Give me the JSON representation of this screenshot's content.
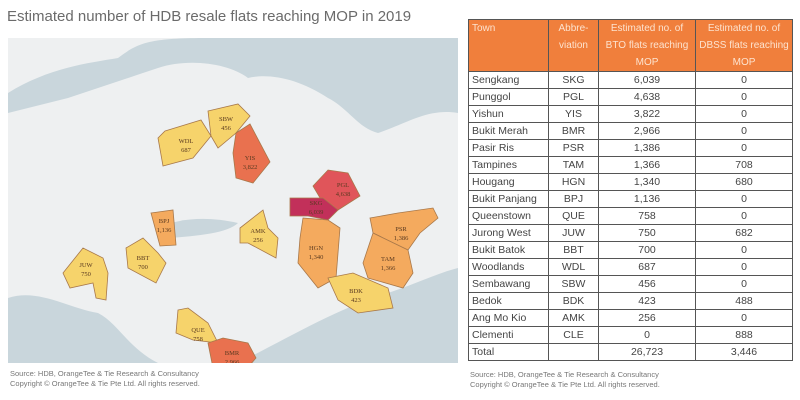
{
  "title": "Estimated number of HDB resale flats reaching MOP in 2019",
  "source_left": "Source: HDB, OrangeTee & Tie Research & Consultancy",
  "copyright_left": "Copyright © OrangeTee & Tie Pte Ltd. All rights reserved.",
  "source_right": "Source: HDB, OrangeTee & Tie Research & Consultancy",
  "copyright_right": "Copyright © OrangeTee & Tie Pte Ltd. All rights reserved.",
  "colors": {
    "header": "#f07f3c",
    "low": "#f6d36b",
    "mid": "#f4aa5e",
    "high": "#e9714f",
    "higher": "#e0555a",
    "highest": "#c2305a",
    "land": "#eef0f1",
    "water": "#c9d6dc"
  },
  "chart_data": {
    "type": "table",
    "title": "Estimated number of HDB resale flats reaching MOP in 2019",
    "columns": [
      "Town",
      "Abbre-viation",
      "Estimated no. of BTO flats reaching MOP",
      "Estimated no. of DBSS flats reaching MOP"
    ],
    "rows": [
      [
        "Sengkang",
        "SKG",
        "6,039",
        "0"
      ],
      [
        "Punggol",
        "PGL",
        "4,638",
        "0"
      ],
      [
        "Yishun",
        "YIS",
        "3,822",
        "0"
      ],
      [
        "Bukit Merah",
        "BMR",
        "2,966",
        "0"
      ],
      [
        "Pasir Ris",
        "PSR",
        "1,386",
        "0"
      ],
      [
        "Tampines",
        "TAM",
        "1,366",
        "708"
      ],
      [
        "Hougang",
        "HGN",
        "1,340",
        "680"
      ],
      [
        "Bukit Panjang",
        "BPJ",
        "1,136",
        "0"
      ],
      [
        "Queenstown",
        "QUE",
        "758",
        "0"
      ],
      [
        "Jurong West",
        "JUW",
        "750",
        "682"
      ],
      [
        "Bukit Batok",
        "BBT",
        "700",
        "0"
      ],
      [
        "Woodlands",
        "WDL",
        "687",
        "0"
      ],
      [
        "Sembawang",
        "SBW",
        "456",
        "0"
      ],
      [
        "Bedok",
        "BDK",
        "423",
        "488"
      ],
      [
        "Ang Mo Kio",
        "AMK",
        "256",
        "0"
      ],
      [
        "Clementi",
        "CLE",
        "0",
        "888"
      ]
    ],
    "total": [
      "Total",
      "",
      "26,723",
      "3,446"
    ],
    "map_labels": [
      {
        "abbr": "WDL",
        "value": "687",
        "level": "low"
      },
      {
        "abbr": "SBW",
        "value": "456",
        "level": "low"
      },
      {
        "abbr": "YIS",
        "value": "3,822",
        "level": "high"
      },
      {
        "abbr": "PGL",
        "value": "4,638",
        "level": "higher"
      },
      {
        "abbr": "SKG",
        "value": "6,039",
        "level": "highest"
      },
      {
        "abbr": "AMK",
        "value": "256",
        "level": "low"
      },
      {
        "abbr": "HGN",
        "value": "1,340",
        "level": "mid"
      },
      {
        "abbr": "PSR",
        "value": "1,386",
        "level": "mid"
      },
      {
        "abbr": "TAM",
        "value": "1,366",
        "level": "mid"
      },
      {
        "abbr": "BDK",
        "value": "423",
        "level": "low"
      },
      {
        "abbr": "BPJ",
        "value": "1,136",
        "level": "mid"
      },
      {
        "abbr": "BBT",
        "value": "700",
        "level": "low"
      },
      {
        "abbr": "JUW",
        "value": "750",
        "level": "low"
      },
      {
        "abbr": "QUE",
        "value": "758",
        "level": "low"
      },
      {
        "abbr": "BMR",
        "value": "2,966",
        "level": "high"
      }
    ]
  }
}
